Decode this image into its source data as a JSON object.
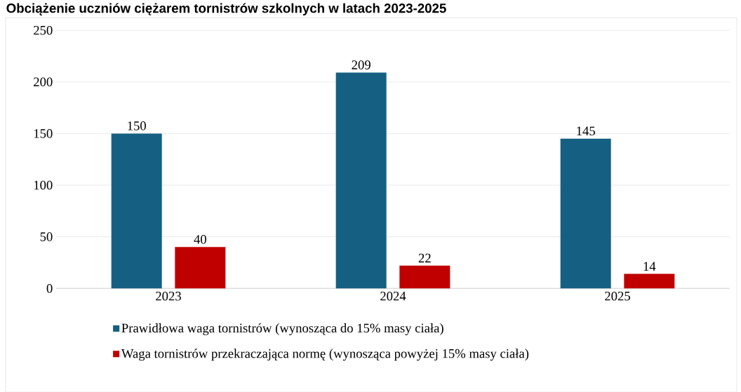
{
  "chart_data": {
    "type": "bar",
    "title": "Obciążenie uczniów ciężarem tornistrów szkolnych w latach 2023-2025",
    "categories": [
      "2023",
      "2024",
      "2025"
    ],
    "series": [
      {
        "name": "Prawidłowa waga tornistrów (wynosząca do 15% masy ciała)",
        "color": "#156082",
        "values": [
          150,
          209,
          145
        ]
      },
      {
        "name": "Waga tornistrów przekraczająca normę (wynosząca powyżej 15% masy ciała)",
        "color": "#c00000",
        "values": [
          40,
          22,
          14
        ]
      }
    ],
    "ylim": [
      0,
      250
    ],
    "yticks": [
      0,
      50,
      100,
      150,
      200,
      250
    ],
    "grid": "y",
    "legend": "bottom",
    "data_labels": true
  }
}
